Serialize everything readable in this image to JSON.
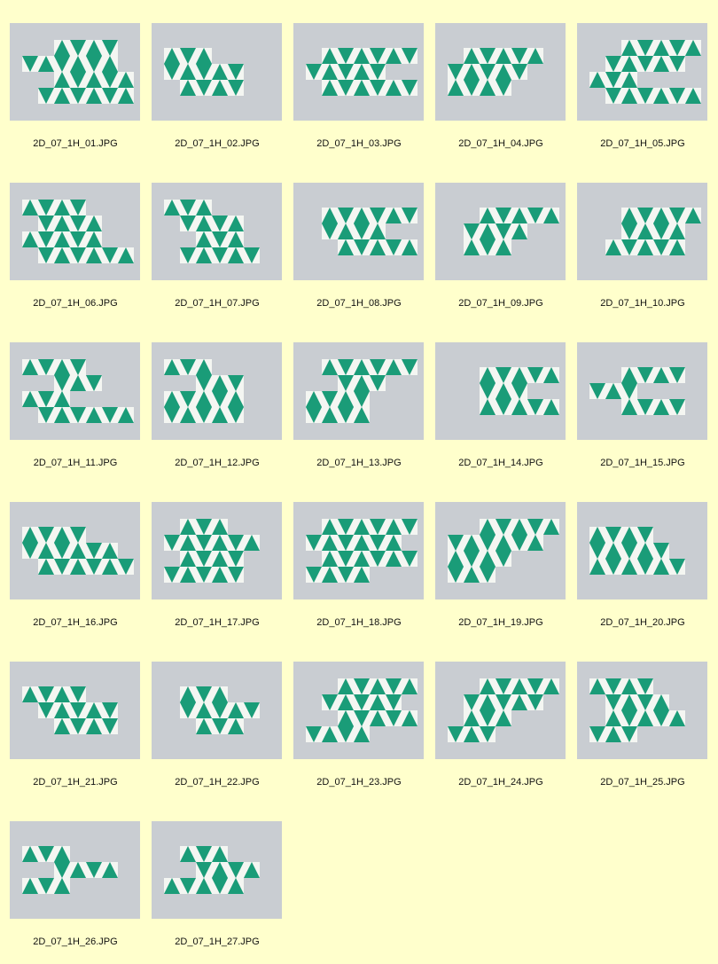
{
  "gallery": {
    "items": [
      {
        "file": "2D_07_1H_01.JPG"
      },
      {
        "file": "2D_07_1H_02.JPG"
      },
      {
        "file": "2D_07_1H_03.JPG"
      },
      {
        "file": "2D_07_1H_04.JPG"
      },
      {
        "file": "2D_07_1H_05.JPG"
      },
      {
        "file": "2D_07_1H_06.JPG"
      },
      {
        "file": "2D_07_1H_07.JPG"
      },
      {
        "file": "2D_07_1H_08.JPG"
      },
      {
        "file": "2D_07_1H_09.JPG"
      },
      {
        "file": "2D_07_1H_10.JPG"
      },
      {
        "file": "2D_07_1H_11.JPG"
      },
      {
        "file": "2D_07_1H_12.JPG"
      },
      {
        "file": "2D_07_1H_13.JPG"
      },
      {
        "file": "2D_07_1H_14.JPG"
      },
      {
        "file": "2D_07_1H_15.JPG"
      },
      {
        "file": "2D_07_1H_16.JPG"
      },
      {
        "file": "2D_07_1H_17.JPG"
      },
      {
        "file": "2D_07_1H_18.JPG"
      },
      {
        "file": "2D_07_1H_19.JPG"
      },
      {
        "file": "2D_07_1H_20.JPG"
      },
      {
        "file": "2D_07_1H_21.JPG"
      },
      {
        "file": "2D_07_1H_22.JPG"
      },
      {
        "file": "2D_07_1H_23.JPG"
      },
      {
        "file": "2D_07_1H_24.JPG"
      },
      {
        "file": "2D_07_1H_25.JPG"
      },
      {
        "file": "2D_07_1H_26.JPG"
      },
      {
        "file": "2D_07_1H_27.JPG"
      }
    ]
  },
  "colors": {
    "background": "#ffffcc",
    "puzzle_green": "#1a9c78",
    "puzzle_white": "#f4f6f2",
    "photo_bg": "#c9cdd2"
  }
}
